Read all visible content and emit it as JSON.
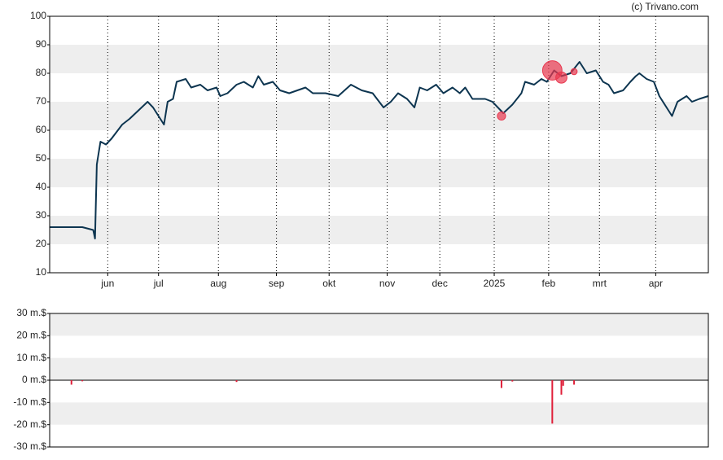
{
  "credit": "(c) Trivano.com",
  "chart_data": [
    {
      "type": "line",
      "xlim": [
        0,
        363
      ],
      "xticks": [
        {
          "value": 32,
          "label": "jun"
        },
        {
          "value": 60,
          "label": "jul"
        },
        {
          "value": 93,
          "label": "aug"
        },
        {
          "value": 125,
          "label": "sep"
        },
        {
          "value": 154,
          "label": "okt"
        },
        {
          "value": 186,
          "label": "nov"
        },
        {
          "value": 215,
          "label": "dec"
        },
        {
          "value": 245,
          "label": "2025"
        },
        {
          "value": 275,
          "label": "feb"
        },
        {
          "value": 303,
          "label": "mrt"
        },
        {
          "value": 334,
          "label": "apr"
        }
      ],
      "ylim": [
        10,
        100
      ],
      "yticks": [
        10,
        20,
        30,
        40,
        50,
        60,
        70,
        80,
        90,
        100
      ],
      "grid": true,
      "x": [
        0,
        18,
        24,
        25,
        26,
        28,
        31,
        34,
        40,
        44,
        49,
        54,
        57,
        63,
        65,
        68,
        70,
        75,
        78,
        83,
        87,
        92,
        94,
        98,
        103,
        107,
        112,
        115,
        118,
        123,
        127,
        132,
        141,
        145,
        152,
        159,
        166,
        172,
        178,
        184,
        188,
        192,
        197,
        201,
        204,
        208,
        213,
        217,
        222,
        226,
        229,
        233,
        240,
        244,
        250,
        255,
        260,
        262,
        267,
        271,
        274,
        278,
        282,
        287,
        292,
        296,
        301,
        305,
        308,
        311,
        316,
        320,
        323,
        325,
        329,
        333,
        336,
        340,
        343,
        346,
        351,
        354,
        358,
        363
      ],
      "series": [
        {
          "color": "#0d3550",
          "values": [
            26,
            26,
            25,
            22,
            48,
            56,
            55,
            57,
            62,
            64,
            67,
            70,
            68,
            62,
            70,
            71,
            77,
            78,
            75,
            76,
            74,
            75,
            72,
            73,
            76,
            77,
            75,
            79,
            76,
            77,
            74,
            73,
            75,
            73,
            73,
            72,
            76,
            74,
            73,
            68,
            70,
            73,
            71,
            68,
            75,
            74,
            76,
            73,
            75,
            73,
            75,
            71,
            71,
            70,
            66,
            69,
            73,
            77,
            76,
            78,
            77,
            81,
            79,
            80,
            84,
            80,
            81,
            77,
            76,
            73,
            74,
            77,
            79,
            80,
            78,
            77,
            72,
            68,
            65,
            70,
            72,
            70,
            71,
            72
          ]
        }
      ],
      "markers": {
        "color": "#e8384f",
        "x": [
          249,
          277,
          282,
          289
        ],
        "values": [
          65,
          81,
          78.5,
          80.6
        ]
      }
    },
    {
      "type": "bar",
      "xlim": [
        0,
        363
      ],
      "ylim": [
        -30,
        30
      ],
      "yticks": [
        {
          "value": -30,
          "label": "-30 m.$"
        },
        {
          "value": -20,
          "label": "-20 m.$"
        },
        {
          "value": -10,
          "label": "-10 m.$"
        },
        {
          "value": 0,
          "label": "0 m.$"
        },
        {
          "value": 10,
          "label": "10 m.$"
        },
        {
          "value": 20,
          "label": "20 m.$"
        },
        {
          "value": 30,
          "label": "30 m.$"
        }
      ],
      "grid": true,
      "color": "#e0203a",
      "x": [
        12,
        18,
        103,
        249,
        255,
        277,
        282,
        283,
        289
      ],
      "values": [
        -2,
        -0.5,
        -0.8,
        -3.5,
        -0.6,
        -19.5,
        -6.5,
        -2.5,
        -2
      ]
    }
  ]
}
